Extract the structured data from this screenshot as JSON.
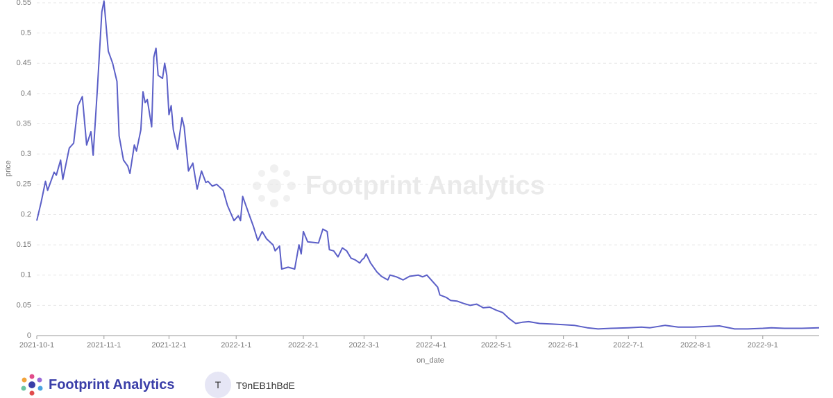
{
  "chart_data": {
    "type": "line",
    "xlabel": "on_date",
    "ylabel": "price",
    "watermark": "Footprint Analytics",
    "x": [
      "2021-10-1",
      "2021-10-3",
      "2021-10-5",
      "2021-10-6",
      "2021-10-9",
      "2021-10-10",
      "2021-10-12",
      "2021-10-13",
      "2021-10-16",
      "2021-10-18",
      "2021-10-20",
      "2021-10-22",
      "2021-10-24",
      "2021-10-26",
      "2021-10-27",
      "2021-10-29",
      "2021-10-31",
      "2021-11-1",
      "2021-11-3",
      "2021-11-5",
      "2021-11-7",
      "2021-11-8",
      "2021-11-10",
      "2021-11-12",
      "2021-11-13",
      "2021-11-15",
      "2021-11-16",
      "2021-11-18",
      "2021-11-19",
      "2021-11-20",
      "2021-11-21",
      "2021-11-23",
      "2021-11-24",
      "2021-11-25",
      "2021-11-26",
      "2021-11-28",
      "2021-11-29",
      "2021-11-30",
      "2021-12-1",
      "2021-12-2",
      "2021-12-3",
      "2021-12-5",
      "2021-12-7",
      "2021-12-8",
      "2021-12-10",
      "2021-12-12",
      "2021-12-14",
      "2021-12-16",
      "2021-12-18",
      "2021-12-19",
      "2021-12-21",
      "2021-12-23",
      "2021-12-26",
      "2021-12-28",
      "2021-12-31",
      "2022-1-2",
      "2022-1-3",
      "2022-1-4",
      "2022-1-7",
      "2022-1-9",
      "2022-1-11",
      "2022-1-13",
      "2022-1-15",
      "2022-1-18",
      "2022-1-19",
      "2022-1-21",
      "2022-1-22",
      "2022-1-25",
      "2022-1-28",
      "2022-1-30",
      "2022-1-31",
      "2022-2-1",
      "2022-2-3",
      "2022-2-8",
      "2022-2-10",
      "2022-2-12",
      "2022-2-13",
      "2022-2-15",
      "2022-2-17",
      "2022-2-19",
      "2022-2-21",
      "2022-2-23",
      "2022-2-25",
      "2022-2-27",
      "2022-2-28",
      "2022-3-1",
      "2022-3-2",
      "2022-3-4",
      "2022-3-7",
      "2022-3-9",
      "2022-3-12",
      "2022-3-13",
      "2022-3-16",
      "2022-3-19",
      "2022-3-22",
      "2022-3-26",
      "2022-3-28",
      "2022-3-30",
      "2022-4-1",
      "2022-4-4",
      "2022-4-5",
      "2022-4-8",
      "2022-4-10",
      "2022-4-13",
      "2022-4-16",
      "2022-4-19",
      "2022-4-22",
      "2022-4-25",
      "2022-4-28",
      "2022-5-1",
      "2022-5-4",
      "2022-5-7",
      "2022-5-10",
      "2022-5-13",
      "2022-5-16",
      "2022-5-21",
      "2022-5-27",
      "2022-6-1",
      "2022-6-6",
      "2022-6-12",
      "2022-6-17",
      "2022-6-23",
      "2022-7-1",
      "2022-7-7",
      "2022-7-11",
      "2022-7-18",
      "2022-7-24",
      "2022-7-31",
      "2022-8-6",
      "2022-8-12",
      "2022-8-19",
      "2022-8-25",
      "2022-9-1",
      "2022-9-5",
      "2022-9-11",
      "2022-9-19",
      "2022-9-27"
    ],
    "series": [
      {
        "color": "#5b5fc7",
        "values": [
          0.19,
          0.22,
          0.255,
          0.24,
          0.27,
          0.265,
          0.29,
          0.258,
          0.31,
          0.318,
          0.38,
          0.395,
          0.315,
          0.337,
          0.298,
          0.41,
          0.535,
          0.553,
          0.47,
          0.45,
          0.42,
          0.33,
          0.29,
          0.28,
          0.268,
          0.315,
          0.305,
          0.34,
          0.403,
          0.385,
          0.39,
          0.345,
          0.46,
          0.475,
          0.43,
          0.425,
          0.45,
          0.43,
          0.365,
          0.38,
          0.34,
          0.308,
          0.36,
          0.345,
          0.272,
          0.285,
          0.242,
          0.272,
          0.253,
          0.255,
          0.247,
          0.25,
          0.24,
          0.215,
          0.19,
          0.198,
          0.19,
          0.23,
          0.2,
          0.18,
          0.157,
          0.172,
          0.16,
          0.15,
          0.14,
          0.148,
          0.11,
          0.113,
          0.11,
          0.15,
          0.135,
          0.172,
          0.155,
          0.153,
          0.176,
          0.172,
          0.142,
          0.14,
          0.13,
          0.145,
          0.14,
          0.128,
          0.125,
          0.12,
          0.125,
          0.128,
          0.135,
          0.12,
          0.105,
          0.098,
          0.092,
          0.1,
          0.097,
          0.092,
          0.098,
          0.1,
          0.097,
          0.1,
          0.092,
          0.08,
          0.067,
          0.063,
          0.058,
          0.057,
          0.053,
          0.05,
          0.052,
          0.046,
          0.047,
          0.042,
          0.038,
          0.028,
          0.02,
          0.022,
          0.023,
          0.02,
          0.019,
          0.018,
          0.017,
          0.013,
          0.011,
          0.012,
          0.013,
          0.014,
          0.013,
          0.017,
          0.014,
          0.014,
          0.015,
          0.016,
          0.011,
          0.011,
          0.012,
          0.013,
          0.012,
          0.012,
          0.013
        ]
      }
    ],
    "xlim": [
      "2021-10-1",
      "2022-9-27"
    ],
    "xticks": [
      "2021-10-1",
      "2021-11-1",
      "2021-12-1",
      "2022-1-1",
      "2022-2-1",
      "2022-3-1",
      "2022-4-1",
      "2022-5-1",
      "2022-6-1",
      "2022-7-1",
      "2022-8-1",
      "2022-9-1"
    ],
    "ylim": [
      0,
      0.55
    ],
    "yticks": [
      0,
      0.05,
      0.1,
      0.15,
      0.2,
      0.25,
      0.3,
      0.35,
      0.4,
      0.45,
      0.5,
      0.55
    ],
    "grid": true
  },
  "footer": {
    "brand": "Footprint Analytics",
    "avatar": "T",
    "user": "T9nEB1hBdE"
  }
}
